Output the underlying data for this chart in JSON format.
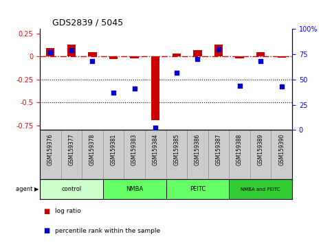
{
  "title": "GDS2839 / 5045",
  "samples": [
    "GSM159376",
    "GSM159377",
    "GSM159378",
    "GSM159381",
    "GSM159383",
    "GSM159384",
    "GSM159385",
    "GSM159386",
    "GSM159387",
    "GSM159388",
    "GSM159389",
    "GSM159390"
  ],
  "log_ratio": [
    0.09,
    0.13,
    0.05,
    -0.03,
    -0.02,
    -0.69,
    0.03,
    0.07,
    0.13,
    -0.02,
    0.05,
    -0.01
  ],
  "percentile_rank": [
    77,
    79,
    68,
    37,
    41,
    2,
    57,
    70,
    80,
    44,
    68,
    43
  ],
  "groups": [
    {
      "label": "control",
      "start": 0,
      "end": 3,
      "color": "#ccffcc"
    },
    {
      "label": "NMBA",
      "start": 3,
      "end": 6,
      "color": "#66ff66"
    },
    {
      "label": "PEITC",
      "start": 6,
      "end": 9,
      "color": "#66ff66"
    },
    {
      "label": "NMBA and PEITC",
      "start": 9,
      "end": 12,
      "color": "#33cc33"
    }
  ],
  "ylim_left": [
    -0.8,
    0.3
  ],
  "ylim_right": [
    0,
    100
  ],
  "yticks_left": [
    0.25,
    0,
    -0.25,
    -0.5,
    -0.75
  ],
  "yticks_right": [
    100,
    75,
    50,
    25,
    0
  ],
  "bar_color": "#cc0000",
  "dot_color": "#0000cc",
  "hline_color": "#cc0000",
  "dotted_line_color": "#000000",
  "background_color": "#ffffff",
  "figsize": [
    4.83,
    3.54
  ],
  "dpi": 100
}
